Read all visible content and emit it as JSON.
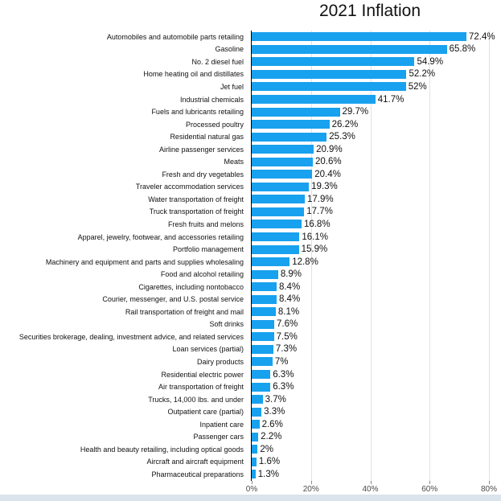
{
  "title": "2021 Inflation",
  "colors": {
    "bar": "#18a1ee",
    "axis_line": "#000000",
    "gridline": "#e2e2e2",
    "tick": "#8a8a8a",
    "tick_label": "#4a4a4a",
    "bottom_strip": "#dbe4ec",
    "text": "#111111"
  },
  "chart_data": {
    "type": "bar",
    "orientation": "horizontal",
    "title": "2021 Inflation",
    "xlabel": "",
    "ylabel": "",
    "xlim": [
      0,
      80
    ],
    "x_ticks": [
      "0%",
      "20%",
      "40%",
      "60%",
      "80%"
    ],
    "x_tick_values": [
      0,
      20,
      40,
      60,
      80
    ],
    "grid": "vertical-gridlines-on",
    "legend": "none",
    "categories": [
      "Automobiles and automobile parts retailing",
      "Gasoline",
      "No. 2 diesel fuel",
      "Home heating oil and distillates",
      "Jet fuel",
      "Industrial chemicals",
      "Fuels and lubricants retailing",
      "Processed poultry",
      "Residential natural gas",
      "Airline passenger services",
      "Meats",
      "Fresh and dry vegetables",
      "Traveler accommodation services",
      "Water transportation of freight",
      "Truck transportation of freight",
      "Fresh fruits and melons",
      "Apparel, jewelry, footwear, and accessories retailing",
      "Portfolio management",
      "Machinery and equipment and parts and supplies wholesaling",
      "Food and alcohol retailing",
      "Cigarettes, including nontobacco",
      "Courier, messenger, and U.S. postal service",
      "Rail transportation of freight and mail",
      "Soft drinks",
      "Securities brokerage, dealing, investment advice, and related services",
      "Loan services (partial)",
      "Dairy products",
      "Residential electric power",
      "Air transportation of freight",
      "Trucks, 14,000 lbs. and under",
      "Outpatient care (partial)",
      "Inpatient care",
      "Passenger cars",
      "Health and beauty retailing, including optical goods",
      "Aircraft and aircraft equipment",
      "Pharmaceutical preparations"
    ],
    "values": [
      72.4,
      65.8,
      54.9,
      52.2,
      52,
      41.7,
      29.7,
      26.2,
      25.3,
      20.9,
      20.6,
      20.4,
      19.3,
      17.9,
      17.7,
      16.8,
      16.1,
      15.9,
      12.8,
      8.9,
      8.4,
      8.4,
      8.1,
      7.6,
      7.5,
      7.3,
      7,
      6.3,
      6.3,
      3.7,
      3.3,
      2.6,
      2.2,
      2,
      1.6,
      1.3
    ],
    "value_labels": [
      "72.4%",
      "65.8%",
      "54.9%",
      "52.2%",
      "52%",
      "41.7%",
      "29.7%",
      "26.2%",
      "25.3%",
      "20.9%",
      "20.6%",
      "20.4%",
      "19.3%",
      "17.9%",
      "17.7%",
      "16.8%",
      "16.1%",
      "15.9%",
      "12.8%",
      "8.9%",
      "8.4%",
      "8.4%",
      "8.1%",
      "7.6%",
      "7.5%",
      "7.3%",
      "7%",
      "6.3%",
      "6.3%",
      "3.7%",
      "3.3%",
      "2.6%",
      "2.2%",
      "2%",
      "1.6%",
      "1.3%"
    ]
  }
}
